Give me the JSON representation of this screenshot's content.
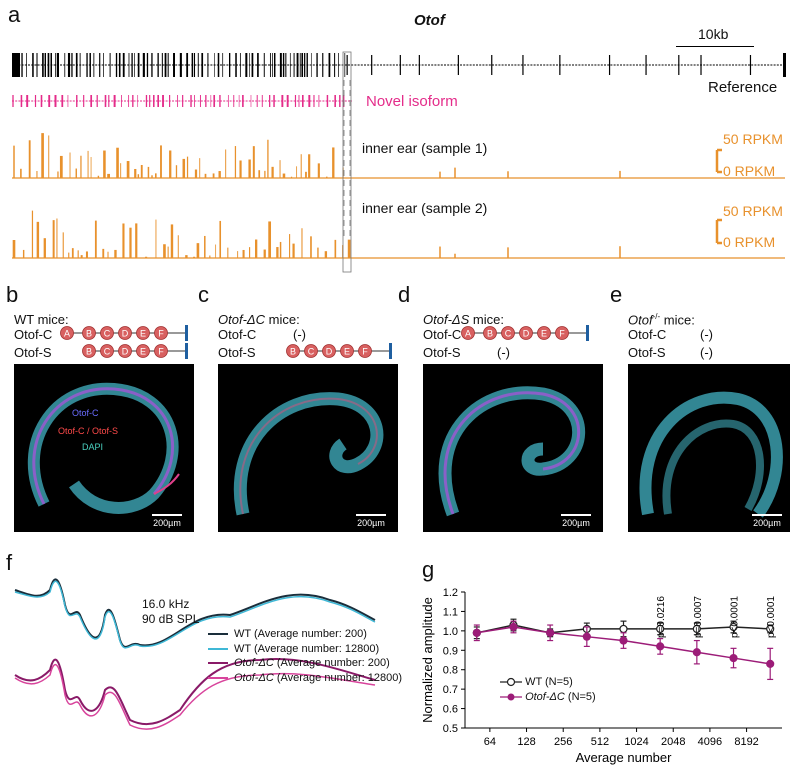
{
  "panel_a": {
    "label": "a",
    "gene": "Otof",
    "scale_bar": "10kb",
    "reference_label": "Reference",
    "novel_isoform_label": "Novel isoform",
    "sample1_label": "inner ear (sample 1)",
    "sample2_label": "inner ear (sample 2)",
    "rpkm_high": "50 RPKM",
    "rpkm_low": "0 RPKM"
  },
  "panel_b": {
    "label": "b",
    "title": "WT mice:",
    "row1": "Otof-C",
    "row2": "Otof-S",
    "exons_c": [
      "A",
      "B",
      "C",
      "D",
      "E",
      "F"
    ],
    "exons_s": [
      "B",
      "C",
      "D",
      "E",
      "F"
    ],
    "legend1": "Otof-C",
    "legend2": "Otof-C / Otof-S",
    "legend3": "DAPI",
    "scale": "200µm"
  },
  "panel_c": {
    "label": "c",
    "title_italic": "Otof-ΔC",
    "title_rest": " mice:",
    "row1": "Otof-C",
    "row1_value": "(-)",
    "row2": "Otof-S",
    "exons_s": [
      "B",
      "C",
      "D",
      "E",
      "F"
    ],
    "scale": "200µm"
  },
  "panel_d": {
    "label": "d",
    "title_italic": "Otof-ΔS",
    "title_rest": " mice:",
    "row1": "Otof-C",
    "exons_c": [
      "A",
      "B",
      "C",
      "D",
      "E",
      "F"
    ],
    "row2": "Otof-S",
    "row2_value": "(-)",
    "scale": "200µm"
  },
  "panel_e": {
    "label": "e",
    "title_italic": "Otof",
    "title_sup": "-/-",
    "title_rest": " mice:",
    "row1": "Otof-C",
    "row1_value": "(-)",
    "row2": "Otof-S",
    "row2_value": "(-)",
    "scale": "200µm"
  },
  "panel_f": {
    "label": "f",
    "stim1": "16.0 kHz",
    "stim2": "90 dB SPL",
    "legend": [
      {
        "text": "WT (Average number: 200)",
        "color": "#1a2e3b"
      },
      {
        "text": "WT (Average number: 12800)",
        "color": "#3fb8d6"
      },
      {
        "text_italic": "Otof-ΔC",
        "text": " (Average number: 200)",
        "color": "#8a1a68"
      },
      {
        "text_italic": "Otof-ΔC",
        "text": " (Average number: 12800)",
        "color": "#d8449c"
      }
    ]
  },
  "chart_data": {
    "type": "line",
    "panel_label": "g",
    "xlabel": "Average number",
    "ylabel": "Normalized amplitude",
    "x": [
      50,
      100,
      200,
      400,
      800,
      1600,
      3200,
      6400,
      12800
    ],
    "xticks": [
      "64",
      "128",
      "256",
      "512",
      "1024",
      "2048",
      "4096",
      "8192"
    ],
    "xtick_values": [
      64,
      128,
      256,
      512,
      1024,
      2048,
      4096,
      8192
    ],
    "ylim": [
      0.5,
      1.2
    ],
    "yticks": [
      "0.5",
      "0.6",
      "0.7",
      "0.8",
      "0.9",
      "1.0",
      "1.1",
      "1.2"
    ],
    "series": [
      {
        "name": "WT (N=5)",
        "values": [
          0.99,
          1.03,
          0.99,
          1.01,
          1.01,
          1.01,
          1.01,
          1.02,
          1.01
        ],
        "errors": [
          0.03,
          0.03,
          0.02,
          0.03,
          0.04,
          0.03,
          0.03,
          0.03,
          0.02
        ],
        "color": "#222222",
        "marker": "open"
      },
      {
        "name_italic": "Otof-ΔC",
        "name": " (N=5)",
        "values": [
          0.99,
          1.02,
          0.99,
          0.97,
          0.95,
          0.92,
          0.89,
          0.86,
          0.83
        ],
        "errors": [
          0.04,
          0.03,
          0.04,
          0.05,
          0.04,
          0.04,
          0.06,
          0.05,
          0.08
        ],
        "color": "#9c1c78",
        "marker": "filled"
      }
    ],
    "annotations": [
      {
        "x": 1600,
        "text": "p=0.0216"
      },
      {
        "x": 3200,
        "text": "p=0.0007"
      },
      {
        "x": 6400,
        "text": "p<0.0001"
      },
      {
        "x": 12800,
        "text": "p<0.0001"
      }
    ]
  }
}
